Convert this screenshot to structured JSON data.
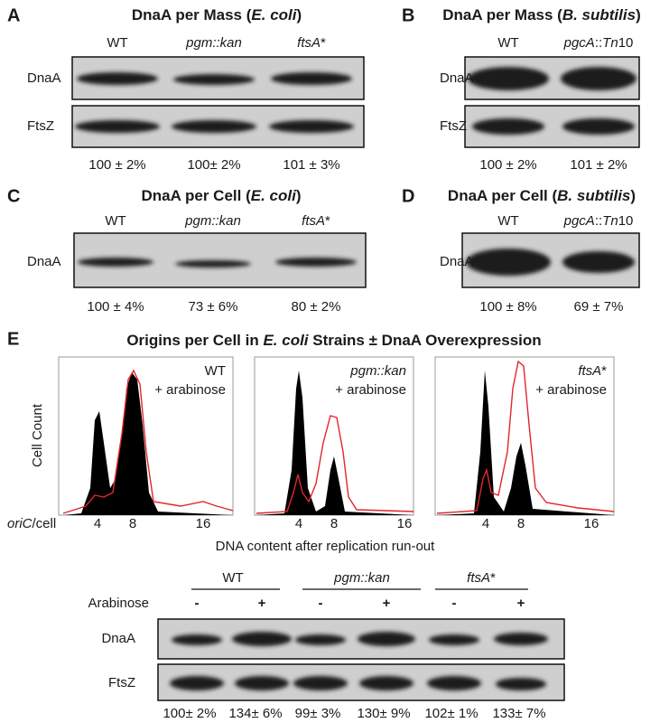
{
  "panels": [
    {
      "letter": "A",
      "title": [
        {
          "text": "DnaA per Mass ("
        },
        {
          "text": "E. coli",
          "italic": true
        },
        {
          "text": ")"
        }
      ],
      "lanes": [
        "WT",
        [
          {
            "text": "pgm::kan",
            "italic": true
          }
        ],
        [
          {
            "text": "ftsA",
            "italic": true
          },
          {
            "text": "*"
          }
        ]
      ],
      "rows": [
        "DnaA",
        "FtsZ"
      ],
      "quantification": [
        "100 ± 2%",
        "100± 2%",
        "101 ± 3%"
      ]
    },
    {
      "letter": "B",
      "title": [
        {
          "text": "DnaA per Mass ("
        },
        {
          "text": "B. subtilis",
          "italic": true
        },
        {
          "text": ")"
        }
      ],
      "lanes": [
        "WT",
        [
          {
            "text": "pgcA",
            "italic": true
          },
          {
            "text": "::"
          },
          {
            "text": "Tn",
            "italic": true
          },
          {
            "text": "10"
          }
        ]
      ],
      "rows": [
        "DnaA",
        "FtsZ"
      ],
      "quantification": [
        "100 ± 2%",
        "101 ± 2%"
      ]
    },
    {
      "letter": "C",
      "title": [
        {
          "text": "DnaA per Cell ("
        },
        {
          "text": "E. coli",
          "italic": true
        },
        {
          "text": ")"
        }
      ],
      "lanes": [
        "WT",
        [
          {
            "text": "pgm::kan",
            "italic": true
          }
        ],
        [
          {
            "text": "ftsA",
            "italic": true
          },
          {
            "text": "*"
          }
        ]
      ],
      "rows": [
        "DnaA"
      ],
      "quantification": [
        "100 ± 4%",
        "73 ± 6%",
        "80 ± 2%"
      ]
    },
    {
      "letter": "D",
      "title": [
        {
          "text": "DnaA per Cell ("
        },
        {
          "text": "B. subtilis",
          "italic": true
        },
        {
          "text": ")"
        }
      ],
      "lanes": [
        "WT",
        [
          {
            "text": "pgcA",
            "italic": true
          },
          {
            "text": "::"
          },
          {
            "text": "Tn",
            "italic": true
          },
          {
            "text": "10"
          }
        ]
      ],
      "rows": [
        "DnaA"
      ],
      "quantification": [
        "100 ± 8%",
        "69 ± 7%"
      ]
    }
  ],
  "panel_e": {
    "letter": "E",
    "title": [
      {
        "text": "Origins per Cell in "
      },
      {
        "text": "E. coli",
        "italic": true
      },
      {
        "text": " Strains ± DnaA Overexpression"
      }
    ],
    "y_label": "Cell Count",
    "x_unit": [
      {
        "text": "oriC",
        "italic": true
      },
      {
        "text": "/cell"
      }
    ],
    "x_label": "DNA content after replication run-out",
    "xticks": [
      4,
      8,
      16
    ],
    "treated_color": "#e3252d",
    "histograms": [
      {
        "strain": "WT",
        "legend": "+ arabinose"
      },
      {
        "strain": [
          {
            "text": "pgm::kan",
            "italic": true
          }
        ],
        "legend": "+ arabinose"
      },
      {
        "strain": [
          {
            "text": "ftsA",
            "italic": true
          },
          {
            "text": "*"
          }
        ],
        "legend": "+ arabinose"
      }
    ],
    "blot": {
      "groups": [
        "WT",
        [
          {
            "text": "pgm::kan",
            "italic": true
          }
        ],
        [
          {
            "text": "ftsA",
            "italic": true
          },
          {
            "text": "*"
          }
        ]
      ],
      "treatment": "Arabinose",
      "signs": [
        "-",
        "+",
        "-",
        "+",
        "-",
        "+"
      ],
      "rows": [
        "DnaA",
        "FtsZ"
      ],
      "quantification": [
        "100± 2%",
        "134± 6%",
        "99± 3%",
        "130± 9%",
        "102± 1%",
        "133± 7%"
      ]
    }
  }
}
